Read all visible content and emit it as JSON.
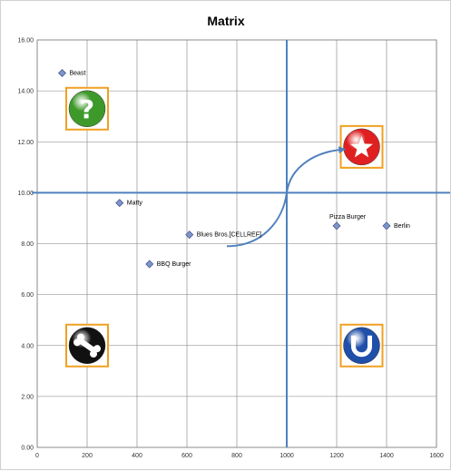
{
  "chart_data": {
    "type": "scatter",
    "title": "Matrix",
    "xlabel": "",
    "ylabel": "",
    "xlim": [
      0,
      1600
    ],
    "ylim": [
      0,
      16
    ],
    "x_ticks": [
      "0",
      "200",
      "400",
      "600",
      "800",
      "1000",
      "1200",
      "1400",
      "1600"
    ],
    "y_ticks": [
      "0.00",
      "2.00",
      "4.00",
      "6.00",
      "8.00",
      "10.00",
      "12.00",
      "14.00",
      "16.00"
    ],
    "grid": true,
    "legend": "none",
    "points": [
      {
        "label": "Beast",
        "x": 100,
        "y": 14.7
      },
      {
        "label": "Matty",
        "x": 330,
        "y": 9.6
      },
      {
        "label": "Blues Bros.[CELLREF]",
        "x": 610,
        "y": 8.35
      },
      {
        "label": "BBQ Burger",
        "x": 450,
        "y": 7.2
      },
      {
        "label": "Pizza Burger",
        "x": 1200,
        "y": 8.7
      },
      {
        "label": "Berlin",
        "x": 1400,
        "y": 8.7
      }
    ],
    "divider_lines": {
      "x": 1000,
      "y": 10,
      "color": "#4f81bd"
    },
    "arrow": {
      "from": [
        760,
        7.9
      ],
      "to": [
        1230,
        11.7
      ],
      "color": "#4f81bd"
    },
    "quadrant_icons": [
      {
        "name": "question-icon",
        "x": 200,
        "y": 13.3,
        "color": "#3d9a2a"
      },
      {
        "name": "star-icon",
        "x": 1300,
        "y": 11.8,
        "color": "#e02020"
      },
      {
        "name": "bone-icon",
        "x": 200,
        "y": 4.0,
        "color": "#111111"
      },
      {
        "name": "magnet-icon",
        "x": 1300,
        "y": 4.0,
        "color": "#1f4fa8"
      }
    ],
    "colors": {
      "marker": "#7f95c9",
      "marker_edge": "#3a4f8a",
      "grid": "#7f7f7f",
      "icon_frame": "#f0a020"
    }
  }
}
